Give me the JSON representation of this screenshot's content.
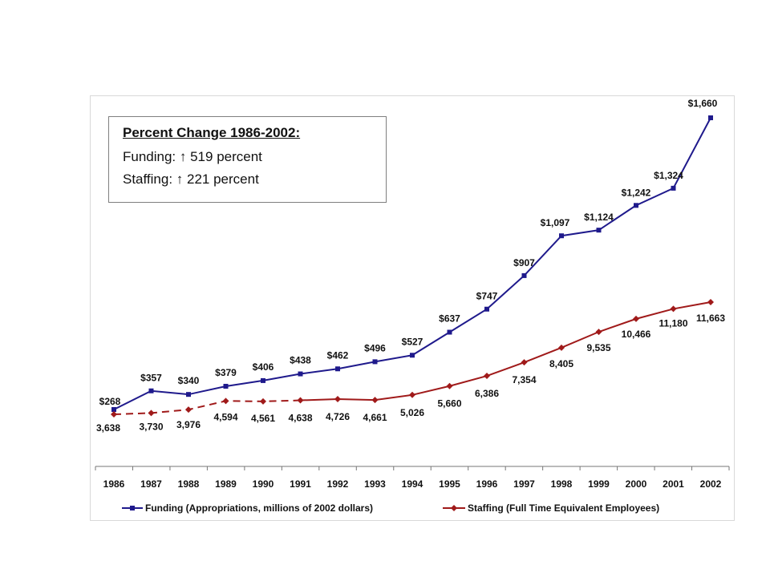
{
  "annotation": {
    "title": "Percent Change 1986-2002:",
    "lines": [
      "Funding:  ↑ 519 percent",
      "Staffing: ↑ 221 percent"
    ]
  },
  "chart_data": {
    "type": "line",
    "x": [
      "1986",
      "1987",
      "1988",
      "1989",
      "1990",
      "1991",
      "1992",
      "1993",
      "1994",
      "1995",
      "1996",
      "1997",
      "1998",
      "1999",
      "2000",
      "2001",
      "2002"
    ],
    "series": [
      {
        "name": "Funding (Appropriations, millions of 2002 dollars)",
        "color": "#1f1a8c",
        "marker": "square",
        "values": [
          268,
          357,
          340,
          379,
          406,
          438,
          462,
          496,
          527,
          637,
          747,
          907,
          1097,
          1124,
          1242,
          1324,
          1660
        ],
        "labels": [
          "$268",
          "$357",
          "$340",
          "$379",
          "$406",
          "$438",
          "$462",
          "$496",
          "$527",
          "$637",
          "$747",
          "$907",
          "$1,097",
          "$1,124",
          "$1,242",
          "$1,324",
          "$1,660"
        ]
      },
      {
        "name": "Staffing (Full Time Equivalent Employees)",
        "color": "#a01a1a",
        "marker": "diamond",
        "dashed_through": "1991",
        "values": [
          3638,
          3730,
          3976,
          4594,
          4561,
          4638,
          4726,
          4661,
          5026,
          5660,
          6386,
          7354,
          8405,
          9535,
          10466,
          11180,
          11663
        ],
        "labels": [
          "3,638",
          "3,730",
          "3,976",
          "4,594",
          "4,561",
          "4,638",
          "4,726",
          "4,661",
          "5,026",
          "5,660",
          "6,386",
          "7,354",
          "8,405",
          "9,535",
          "10,466",
          "11,180",
          "11,663"
        ]
      }
    ],
    "title": "",
    "xlabel": "",
    "ylabel": "",
    "grid": false,
    "legend_position": "bottom"
  }
}
